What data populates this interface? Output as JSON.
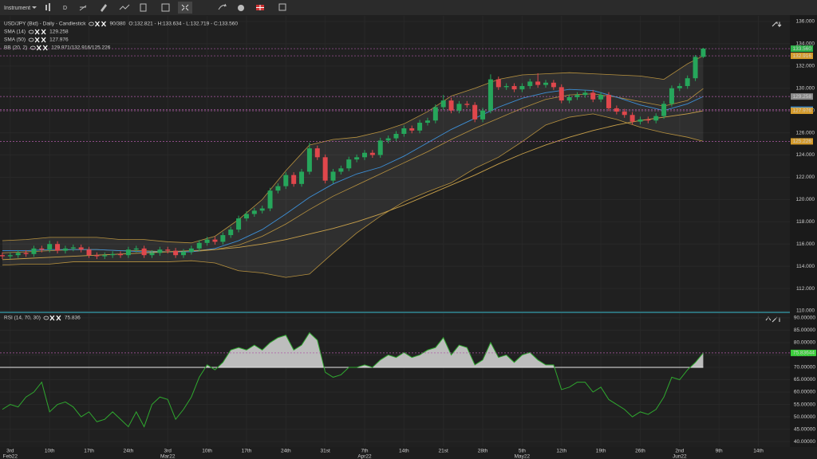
{
  "toolbar": {
    "instrument": "Instrument",
    "timeframe": "D"
  },
  "chart_data": [
    {
      "type": "candlestick",
      "legend": {
        "title": "USD/JPY (Bid) - Daily - Candlestick",
        "count": "90/380",
        "ohlc": "O:132.821 - H:133.634 - L:132.719 - C:133.560"
      },
      "up_color": "#26a65b",
      "down_color": "#e0474c",
      "xlim": [
        -0.3,
        100
      ],
      "ylim": [
        110,
        136.5
      ],
      "yticks": [
        {
          "value": 110,
          "label": "110.000"
        },
        {
          "value": 112,
          "label": "112.000"
        },
        {
          "value": 114,
          "label": "114.000"
        },
        {
          "value": 116,
          "label": "116.000"
        },
        {
          "value": 118,
          "label": "118.000"
        },
        {
          "value": 120,
          "label": "120.000"
        },
        {
          "value": 122,
          "label": "122.000"
        },
        {
          "value": 124,
          "label": "124.000"
        },
        {
          "value": 126,
          "label": "126.000"
        },
        {
          "value": 128,
          "label": "128.000"
        },
        {
          "value": 130,
          "label": "130.000"
        },
        {
          "value": 132,
          "label": "132.000"
        },
        {
          "value": 134,
          "label": "134.000"
        },
        {
          "value": 136,
          "label": "136.000"
        }
      ],
      "grid": true,
      "open": [
        115.0,
        114.9,
        115.0,
        115.2,
        115.1,
        115.6,
        115.5,
        116.0,
        115.4,
        115.6,
        115.7,
        115.5,
        115.0,
        114.9,
        115.0,
        115.1,
        115.0,
        115.5,
        115.6,
        115.0,
        115.2,
        115.5,
        115.4,
        115.0,
        115.3,
        115.6,
        116.1,
        116.4,
        116.2,
        116.8,
        117.3,
        118.3,
        118.7,
        119.0,
        119.2,
        120.8,
        121.2,
        122.2,
        121.4,
        122.5,
        124.6,
        123.8,
        121.7,
        122.5,
        122.8,
        123.6,
        123.8,
        124.2,
        124.0,
        125.3,
        125.5,
        125.9,
        126.4,
        126.2,
        126.9,
        127.1,
        128.3,
        128.9,
        128.0,
        128.6,
        128.5,
        127.2,
        128.0,
        130.8,
        130.1,
        130.2,
        129.9,
        130.2,
        130.6,
        130.3,
        130.5,
        130.1,
        128.9,
        129.2,
        129.4,
        129.6,
        129.0,
        129.4,
        128.2,
        127.9,
        127.6,
        127.0,
        127.2,
        127.1,
        127.5,
        128.6,
        130.0,
        130.2,
        130.9,
        132.821
      ],
      "high": [
        115.25,
        115.25,
        115.45,
        115.45,
        115.85,
        115.85,
        116.3,
        116.25,
        115.85,
        115.95,
        115.95,
        115.75,
        115.25,
        115.25,
        115.35,
        115.35,
        115.75,
        115.85,
        115.85,
        115.45,
        115.75,
        115.75,
        115.65,
        115.55,
        115.85,
        116.35,
        116.65,
        116.65,
        117.05,
        117.55,
        118.55,
        118.95,
        119.25,
        119.45,
        121.05,
        121.45,
        122.45,
        122.45,
        122.75,
        125.1,
        124.85,
        124.05,
        122.75,
        123.05,
        123.85,
        124.05,
        124.45,
        124.45,
        125.55,
        125.75,
        126.15,
        126.65,
        126.65,
        127.15,
        127.35,
        128.55,
        129.4,
        129.15,
        128.85,
        128.85,
        128.75,
        128.25,
        131.25,
        131.05,
        130.45,
        130.45,
        130.45,
        130.85,
        131.35,
        130.75,
        130.75,
        130.35,
        129.45,
        129.65,
        129.85,
        129.85,
        129.65,
        129.65,
        128.45,
        128.15,
        127.85,
        127.45,
        127.45,
        127.75,
        128.85,
        130.25,
        130.45,
        131.15,
        132.99,
        133.634
      ],
      "low": [
        114.65,
        114.65,
        114.75,
        114.85,
        114.85,
        115.25,
        115.25,
        115.15,
        115.15,
        115.35,
        115.25,
        114.75,
        114.65,
        114.65,
        114.75,
        114.75,
        114.75,
        115.25,
        114.75,
        114.75,
        114.95,
        115.15,
        114.75,
        114.75,
        115.05,
        115.35,
        115.85,
        115.95,
        115.95,
        116.55,
        117.05,
        118.05,
        118.45,
        118.75,
        118.95,
        120.55,
        120.95,
        121.15,
        121.15,
        122.25,
        123.55,
        121.45,
        121.45,
        122.25,
        122.55,
        123.35,
        123.55,
        123.75,
        123.75,
        125.05,
        125.25,
        125.65,
        125.95,
        125.95,
        126.65,
        126.85,
        128.05,
        127.75,
        127.75,
        128.25,
        126.95,
        126.95,
        127.75,
        129.85,
        129.85,
        129.65,
        129.65,
        129.95,
        130.05,
        130.05,
        129.85,
        128.65,
        128.65,
        128.95,
        129.15,
        128.75,
        128.75,
        127.95,
        127.65,
        127.35,
        126.75,
        126.75,
        126.85,
        126.85,
        127.25,
        128.35,
        129.75,
        129.95,
        130.65,
        132.719
      ],
      "close": [
        114.9,
        115.0,
        115.2,
        115.1,
        115.6,
        115.5,
        116.0,
        115.4,
        115.6,
        115.7,
        115.5,
        115.0,
        114.9,
        115.0,
        115.1,
        115.0,
        115.5,
        115.6,
        115.0,
        115.2,
        115.5,
        115.4,
        115.0,
        115.3,
        115.6,
        116.1,
        116.4,
        116.2,
        116.8,
        117.3,
        118.3,
        118.7,
        119.0,
        119.2,
        120.8,
        121.2,
        122.2,
        121.4,
        122.5,
        124.6,
        123.8,
        121.7,
        122.5,
        122.8,
        123.6,
        123.8,
        124.2,
        124.0,
        125.3,
        125.5,
        125.9,
        126.4,
        126.2,
        126.9,
        127.1,
        128.3,
        128.9,
        128.0,
        128.6,
        128.5,
        127.2,
        128.0,
        130.8,
        130.1,
        130.2,
        129.9,
        130.2,
        130.6,
        130.3,
        130.5,
        130.1,
        128.9,
        129.2,
        129.4,
        129.6,
        129.0,
        129.4,
        128.2,
        127.9,
        127.6,
        127.0,
        127.2,
        127.1,
        127.5,
        128.6,
        130.0,
        130.2,
        130.9,
        132.82,
        133.56
      ],
      "indicator_x": [
        0,
        3,
        6,
        9,
        12,
        15,
        18,
        21,
        24,
        27,
        30,
        33,
        36,
        39,
        42,
        45,
        48,
        51,
        54,
        57,
        60,
        63,
        66,
        69,
        72,
        75,
        78,
        81,
        84,
        87,
        89
      ],
      "series": [
        {
          "name": "SMA (14)",
          "legend_value": "129.258",
          "color": "#3d8fd6",
          "values": [
            115.4,
            115.4,
            115.5,
            115.5,
            115.5,
            115.4,
            115.3,
            115.3,
            115.3,
            115.6,
            116.3,
            117.3,
            118.7,
            120.2,
            121.4,
            122.3,
            122.9,
            123.9,
            125.1,
            126.3,
            127.3,
            128.3,
            129.1,
            129.6,
            129.9,
            129.8,
            129.2,
            128.5,
            128.0,
            128.6,
            129.258
          ]
        },
        {
          "name": "SMA (50)",
          "legend_value": "127.976",
          "color": "#c8a04a",
          "values": [
            114.6,
            114.7,
            114.8,
            114.9,
            115.0,
            115.1,
            115.2,
            115.3,
            115.4,
            115.5,
            115.7,
            116.0,
            116.4,
            116.9,
            117.4,
            118.0,
            118.7,
            119.5,
            120.4,
            121.3,
            122.2,
            123.2,
            124.1,
            124.9,
            125.6,
            126.2,
            126.7,
            127.1,
            127.4,
            127.7,
            127.976
          ]
        }
      ],
      "bands": {
        "name": "BB (20, 2)",
        "legend_value": "129.971/132.916/125.226",
        "color": "#b8923f",
        "middle": [
          115.2,
          115.3,
          115.4,
          115.5,
          115.5,
          115.4,
          115.4,
          115.3,
          115.3,
          115.5,
          115.9,
          116.7,
          117.8,
          119.1,
          120.3,
          121.3,
          122.3,
          123.3,
          124.3,
          125.4,
          126.4,
          127.3,
          128.2,
          129.0,
          129.4,
          129.5,
          129.2,
          128.8,
          128.4,
          128.9,
          129.971
        ],
        "upper": [
          116.3,
          116.4,
          116.6,
          116.6,
          116.6,
          116.4,
          116.4,
          116.2,
          116.1,
          116.7,
          118.2,
          120.0,
          122.6,
          124.9,
          125.4,
          125.6,
          126.1,
          126.8,
          127.9,
          129.3,
          130.0,
          130.8,
          131.2,
          131.3,
          131.4,
          131.3,
          131.2,
          131.1,
          130.8,
          132.2,
          132.916
        ],
        "lower": [
          114.1,
          114.2,
          114.2,
          114.4,
          114.4,
          114.4,
          114.4,
          114.4,
          114.5,
          114.3,
          113.6,
          113.4,
          113.0,
          113.3,
          115.2,
          117.0,
          118.5,
          119.8,
          120.7,
          121.5,
          122.8,
          123.8,
          125.2,
          126.7,
          127.4,
          127.7,
          127.2,
          126.5,
          126.0,
          125.6,
          125.226
        ]
      },
      "price_labels": [
        {
          "value": 133.56,
          "label": "133.560",
          "color": "#2fb34a"
        },
        {
          "value": 132.916,
          "label": "132.916",
          "color": "#d49a2a"
        },
        {
          "value": 129.258,
          "label": "129.258",
          "color": "#8a8a8a"
        },
        {
          "value": 128.071,
          "label": "128.071",
          "color": "#3d8fd6"
        },
        {
          "value": 127.976,
          "label": "127.976",
          "color": "#d49a2a"
        },
        {
          "value": 125.226,
          "label": "125.226",
          "color": "#d49a2a"
        }
      ]
    },
    {
      "type": "line",
      "legend": {
        "title": "RSI (14, 70, 30)",
        "value": "75.836"
      },
      "xlim": [
        -0.3,
        100
      ],
      "ylim": [
        38.1,
        91.9
      ],
      "yticks": [
        {
          "value": 40,
          "label": "40.00000"
        },
        {
          "value": 45,
          "label": "45.00000"
        },
        {
          "value": 50,
          "label": "50.00000"
        },
        {
          "value": 55,
          "label": "55.00000"
        },
        {
          "value": 60,
          "label": "60.00000"
        },
        {
          "value": 65,
          "label": "65.00000"
        },
        {
          "value": 70,
          "label": "70.00000"
        },
        {
          "value": 75,
          "label": "75.00000"
        },
        {
          "value": 80,
          "label": "80.00000"
        },
        {
          "value": 85,
          "label": "85.00000"
        },
        {
          "value": 90,
          "label": "90.00000"
        }
      ],
      "xticks": [
        {
          "value": 1,
          "label": "3rd",
          "sublabel": "Feb22"
        },
        {
          "value": 6,
          "label": "10th"
        },
        {
          "value": 11,
          "label": "17th"
        },
        {
          "value": 16,
          "label": "24th"
        },
        {
          "value": 21,
          "label": "3rd",
          "sublabel": "Mar22"
        },
        {
          "value": 26,
          "label": "10th"
        },
        {
          "value": 31,
          "label": "17th"
        },
        {
          "value": 36,
          "label": "24th"
        },
        {
          "value": 41,
          "label": "31st"
        },
        {
          "value": 46,
          "label": "7th",
          "sublabel": "Apr22"
        },
        {
          "value": 51,
          "label": "14th"
        },
        {
          "value": 56,
          "label": "21st"
        },
        {
          "value": 61,
          "label": "28th"
        },
        {
          "value": 66,
          "label": "5th",
          "sublabel": "May22"
        },
        {
          "value": 71,
          "label": "12th"
        },
        {
          "value": 76,
          "label": "19th"
        },
        {
          "value": 81,
          "label": "26th"
        },
        {
          "value": 86,
          "label": "2nd",
          "sublabel": "Jun22"
        },
        {
          "value": 91,
          "label": "9th"
        },
        {
          "value": 96,
          "label": "14th"
        }
      ],
      "level": 70,
      "current_label": 75.83644,
      "current_color": "#3ad03a",
      "series": [
        {
          "name": "RSI (14, 70, 30)",
          "color": "#2fa82f",
          "values": [
            53,
            55,
            54,
            58,
            60,
            64,
            52,
            55,
            56,
            54,
            50,
            52,
            48,
            49,
            52,
            49,
            46,
            52,
            46,
            55,
            58,
            57,
            49,
            53,
            58,
            66,
            71,
            69,
            72,
            77,
            78,
            77,
            79,
            77,
            80,
            82,
            83,
            77,
            79,
            84,
            81,
            68,
            66,
            67,
            70,
            70,
            71,
            70,
            73,
            75,
            74,
            76,
            74,
            75,
            77,
            78,
            82,
            75,
            79,
            78,
            71,
            73,
            80,
            74,
            75,
            72,
            75,
            76,
            73,
            71,
            71,
            61,
            62,
            64,
            64,
            60,
            62,
            57,
            55,
            53,
            50,
            52,
            51,
            53,
            58,
            66,
            65,
            69,
            72,
            75.836
          ]
        }
      ]
    }
  ]
}
